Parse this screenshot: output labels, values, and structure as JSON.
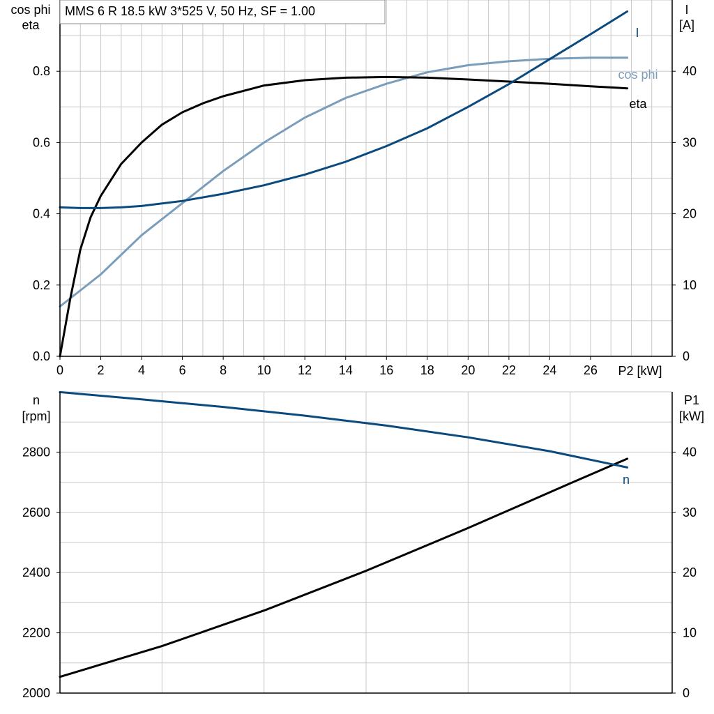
{
  "colors": {
    "eta": "#000000",
    "cos_phi": "#7a9dbb",
    "current": "#0b4a7e",
    "speed": "#0b4a7e",
    "p1": "#000000",
    "grid": "#c8c8c8"
  },
  "chart_data": [
    {
      "type": "line",
      "title": "MMS 6 R   18.5 kW   3*525 V, 50 Hz, SF = 1.00",
      "xlabel": "P2 [kW]",
      "ylabel_left_1": "cos phi",
      "ylabel_left_2": "eta",
      "ylabel_right_1": "I",
      "ylabel_right_2": "[A]",
      "xlim": [
        0,
        30
      ],
      "ylim_left": [
        0,
        1.0
      ],
      "ylim_right": [
        0,
        50
      ],
      "x_ticks": [
        "0",
        "2",
        "4",
        "6",
        "8",
        "10",
        "12",
        "14",
        "16",
        "18",
        "20",
        "22",
        "24",
        "26"
      ],
      "y_ticks_left": [
        "0.0",
        "0.2",
        "0.4",
        "0.6",
        "0.8"
      ],
      "y_ticks_right": [
        "0",
        "10",
        "20",
        "30",
        "40"
      ],
      "grid": true,
      "series": [
        {
          "name": "eta",
          "axis": "left",
          "color_key": "eta",
          "x": [
            0,
            0.5,
            1,
            1.5,
            2,
            3,
            4,
            5,
            6,
            7,
            8,
            10,
            12,
            14,
            16,
            18,
            20,
            22,
            24,
            26,
            27.8
          ],
          "y": [
            0.0,
            0.16,
            0.3,
            0.39,
            0.45,
            0.54,
            0.6,
            0.65,
            0.685,
            0.71,
            0.73,
            0.76,
            0.775,
            0.782,
            0.784,
            0.782,
            0.777,
            0.771,
            0.765,
            0.758,
            0.752
          ]
        },
        {
          "name": "cos phi",
          "axis": "left",
          "color_key": "cos_phi",
          "x": [
            0,
            2,
            4,
            6,
            8,
            10,
            12,
            14,
            16,
            18,
            20,
            22,
            24,
            26,
            27.8
          ],
          "y": [
            0.14,
            0.23,
            0.34,
            0.43,
            0.52,
            0.6,
            0.67,
            0.725,
            0.765,
            0.797,
            0.817,
            0.828,
            0.835,
            0.838,
            0.838
          ]
        },
        {
          "name": "I",
          "axis": "right",
          "color_key": "current",
          "x": [
            0,
            1,
            2,
            3,
            4,
            6,
            8,
            10,
            12,
            14,
            16,
            18,
            20,
            22,
            24,
            26,
            27.8
          ],
          "y": [
            20.9,
            20.8,
            20.8,
            20.9,
            21.1,
            21.8,
            22.8,
            24.0,
            25.5,
            27.3,
            29.5,
            32.0,
            35.0,
            38.2,
            41.7,
            45.2,
            48.4
          ]
        }
      ]
    },
    {
      "type": "line",
      "xlabel": "",
      "ylabel_left_1": "n",
      "ylabel_left_2": "[rpm]",
      "ylabel_right_1": "P1",
      "ylabel_right_2": "[kW]",
      "xlim": [
        0,
        30
      ],
      "ylim_left": [
        2000,
        3000
      ],
      "ylim_right": [
        0,
        50
      ],
      "y_ticks_left": [
        "2000",
        "2200",
        "2400",
        "2600",
        "2800"
      ],
      "y_ticks_right": [
        "0",
        "10",
        "20",
        "30",
        "40"
      ],
      "grid": true,
      "series": [
        {
          "name": "n",
          "axis": "left",
          "color_key": "speed",
          "x": [
            0,
            4,
            8,
            12,
            16,
            20,
            24,
            27.8
          ],
          "y": [
            2999,
            2975,
            2950,
            2921,
            2888,
            2849,
            2803,
            2749
          ]
        },
        {
          "name": "",
          "axis": "right",
          "color_key": "p1",
          "x": [
            0,
            5,
            10,
            15,
            20,
            25,
            27.8
          ],
          "y": [
            2.7,
            7.8,
            13.7,
            20.3,
            27.4,
            34.8,
            38.9
          ]
        }
      ]
    }
  ]
}
